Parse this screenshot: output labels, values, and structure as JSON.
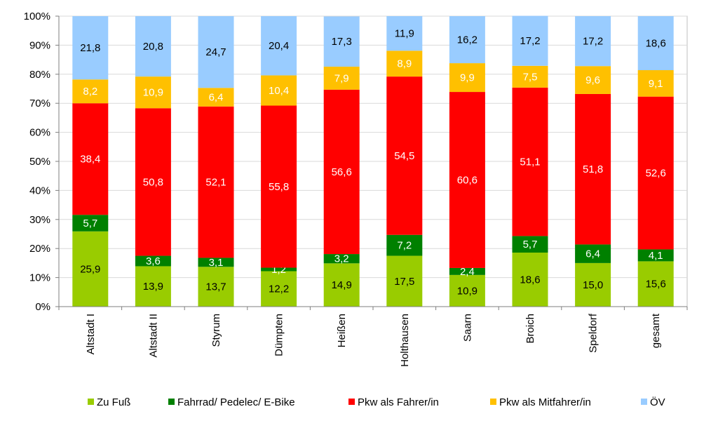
{
  "chart_data": {
    "type": "bar",
    "stacked": true,
    "percent": true,
    "title": "",
    "xlabel": "",
    "ylabel": "",
    "ylim": [
      0,
      100
    ],
    "yticks": [
      "0%",
      "10%",
      "20%",
      "30%",
      "40%",
      "50%",
      "60%",
      "70%",
      "80%",
      "90%",
      "100%"
    ],
    "legend_position": "bottom",
    "categories": [
      "Altstadt I",
      "Altstadt II",
      "Styrum",
      "Dümpten",
      "Heißen",
      "Holthausen",
      "Saarn",
      "Broich",
      "Speldorf",
      "gesamt"
    ],
    "series": [
      {
        "name": "Zu Fuß",
        "color": "#99cc00",
        "values": [
          25.9,
          13.9,
          13.7,
          12.2,
          14.9,
          17.5,
          10.9,
          18.6,
          15.0,
          15.6
        ],
        "labels": [
          "25,9",
          "13,9",
          "13,7",
          "12,2",
          "14,9",
          "17,5",
          "10,9",
          "18,6",
          "15,0",
          "15,6"
        ]
      },
      {
        "name": "Fahrrad/ Pedelec/ E-Bike",
        "color": "#008000",
        "values": [
          5.7,
          3.6,
          3.1,
          1.2,
          3.2,
          7.2,
          2.4,
          5.7,
          6.4,
          4.1
        ],
        "labels": [
          "5,7",
          "3,6",
          "3,1",
          "1,2",
          "3,2",
          "7,2",
          "2,4",
          "5,7",
          "6,4",
          "4,1"
        ]
      },
      {
        "name": "Pkw als Fahrer/in",
        "color": "#ff0000",
        "values": [
          38.4,
          50.8,
          52.1,
          55.8,
          56.6,
          54.5,
          60.6,
          51.1,
          51.8,
          52.6
        ],
        "labels": [
          "38,4",
          "50,8",
          "52,1",
          "55,8",
          "56,6",
          "54,5",
          "60,6",
          "51,1",
          "51,8",
          "52,6"
        ]
      },
      {
        "name": "Pkw als Mitfahrer/in",
        "color": "#ffc000",
        "values": [
          8.2,
          10.9,
          6.4,
          10.4,
          7.9,
          8.9,
          9.9,
          7.5,
          9.6,
          9.1
        ],
        "labels": [
          "8,2",
          "10,9",
          "6,4",
          "10,4",
          "7,9",
          "8,9",
          "9,9",
          "7,5",
          "9,6",
          "9,1"
        ]
      },
      {
        "name": "ÖV",
        "color": "#99ccff",
        "values": [
          21.8,
          20.8,
          24.7,
          20.4,
          17.3,
          11.9,
          16.2,
          17.2,
          17.2,
          18.6
        ],
        "labels": [
          "21,8",
          "20,8",
          "24,7",
          "20,4",
          "17,3",
          "11,9",
          "16,2",
          "17,2",
          "17,2",
          "18,6"
        ]
      }
    ],
    "label_colors": [
      "#000000",
      "#ffffff",
      "#ffffff",
      "#ffffff",
      "#000000"
    ]
  }
}
